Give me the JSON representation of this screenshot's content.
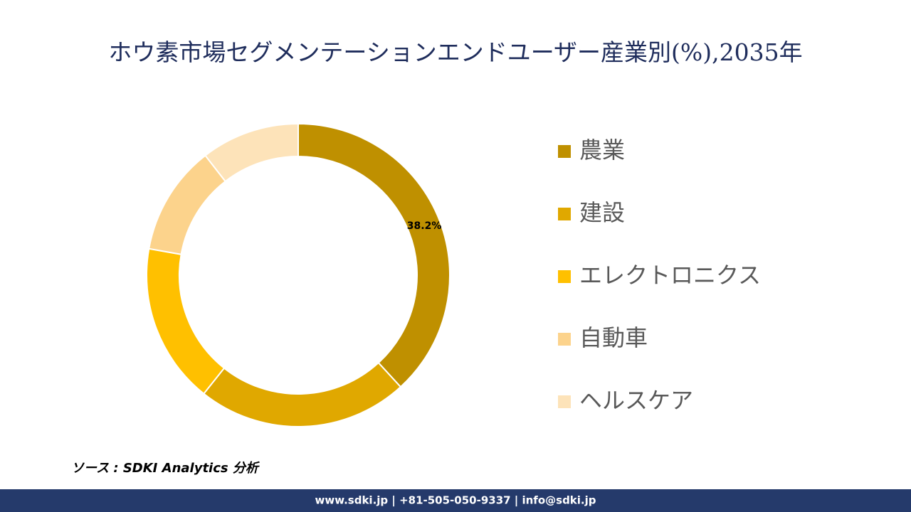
{
  "chart_data": {
    "type": "donut",
    "title": "ホウ素市場セグメンテーションエンドユーザー産業別(%),2035年",
    "categories": [
      "農業",
      "建設",
      "エレクトロニクス",
      "自動車",
      "ヘルスケア"
    ],
    "values": [
      38.2,
      22.5,
      17.1,
      11.7,
      10.5
    ],
    "value_labels": [
      "38.2%",
      null,
      null,
      null,
      null
    ],
    "colors": [
      "#bf9000",
      "#e0a800",
      "#ffc000",
      "#fcd38c",
      "#fde3b9"
    ],
    "source": "ソース : SDKI Analytics 分析",
    "footer": "www.sdki.jp | +81-505-050-9337 | info@sdki.jp"
  }
}
